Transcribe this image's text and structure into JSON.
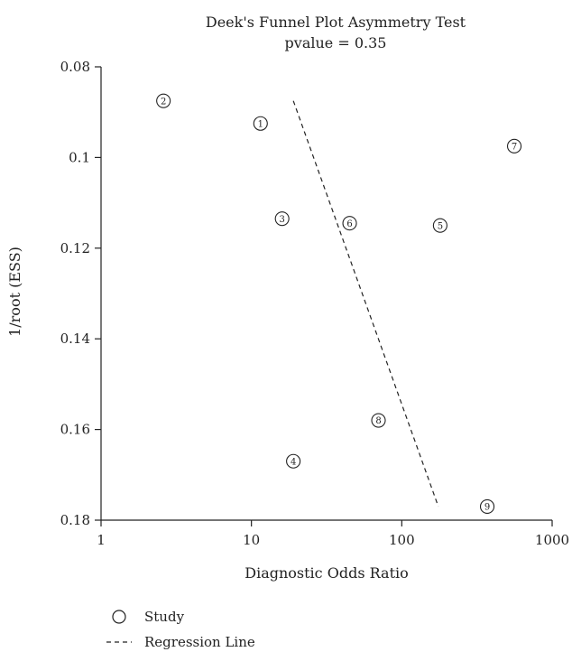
{
  "chart_data": {
    "type": "scatter",
    "title": "Deek's Funnel Plot Asymmetry Test",
    "subtitle": "pvalue = 0.35",
    "xlabel": "Diagnostic Odds Ratio",
    "ylabel": "1/root (ESS)",
    "x_scale": "log",
    "xlim": [
      1,
      1000
    ],
    "ylim": [
      0.08,
      0.18
    ],
    "y_reversed": true,
    "x_ticks": [
      1,
      10,
      100,
      1000
    ],
    "x_tick_labels": [
      "1",
      "10",
      "100",
      "1000"
    ],
    "y_ticks": [
      0.08,
      0.1,
      0.12,
      0.14,
      0.16,
      0.18
    ],
    "y_tick_labels": [
      "0.08",
      "0.1",
      "0.12",
      "0.14",
      "0.16",
      "0.18"
    ],
    "series": [
      {
        "name": "Study",
        "points": [
          {
            "label": "1",
            "x": 11.5,
            "y": 0.0925
          },
          {
            "label": "2",
            "x": 2.6,
            "y": 0.0875
          },
          {
            "label": "3",
            "x": 16,
            "y": 0.1135
          },
          {
            "label": "4",
            "x": 19,
            "y": 0.167
          },
          {
            "label": "5",
            "x": 180,
            "y": 0.115
          },
          {
            "label": "6",
            "x": 45,
            "y": 0.1145
          },
          {
            "label": "7",
            "x": 560,
            "y": 0.0975
          },
          {
            "label": "8",
            "x": 70,
            "y": 0.158
          },
          {
            "label": "9",
            "x": 370,
            "y": 0.177
          }
        ]
      },
      {
        "name": "Regression Line",
        "line": [
          {
            "x": 19,
            "y": 0.0875
          },
          {
            "x": 175,
            "y": 0.177
          }
        ]
      }
    ],
    "legend": {
      "placement": "bottom-left",
      "entries": [
        "Study",
        "Regression Line"
      ]
    },
    "grid": false
  }
}
